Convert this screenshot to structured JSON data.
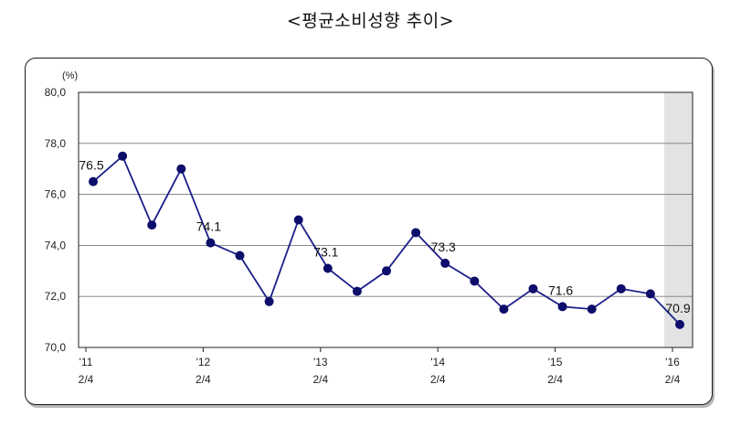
{
  "title": "<평균소비성향 추이>",
  "chart_data": {
    "type": "line",
    "title": "<평균소비성향 추이>",
    "unit_label": "(%)",
    "ylim": [
      70.0,
      80.0
    ],
    "y_ticks": [
      "70,0",
      "72,0",
      "74,0",
      "76,0",
      "78,0",
      "80,0"
    ],
    "grid": true,
    "x_tick_labels": [
      {
        "year": "'11",
        "quarter": "2/4",
        "index": 0
      },
      {
        "year": "'12",
        "quarter": "2/4",
        "index": 4
      },
      {
        "year": "'13",
        "quarter": "2/4",
        "index": 8
      },
      {
        "year": "'14",
        "quarter": "2/4",
        "index": 12
      },
      {
        "year": "'15",
        "quarter": "2/4",
        "index": 16
      },
      {
        "year": "'16",
        "quarter": "2/4",
        "index": 20
      }
    ],
    "values": [
      76.5,
      77.5,
      74.8,
      77.0,
      74.1,
      73.6,
      71.8,
      75.0,
      73.1,
      72.2,
      73.0,
      74.5,
      73.3,
      72.6,
      71.5,
      72.3,
      71.6,
      71.5,
      72.3,
      72.1,
      70.9
    ],
    "data_labels": [
      {
        "index": 0,
        "text": "76.5"
      },
      {
        "index": 4,
        "text": "74.1"
      },
      {
        "index": 8,
        "text": "73.1"
      },
      {
        "index": 12,
        "text": "73.3"
      },
      {
        "index": 16,
        "text": "71.6"
      },
      {
        "index": 20,
        "text": "70.9"
      }
    ],
    "highlight_index": 20,
    "line_color": "#1b1f8a",
    "marker_color": "#0d0d6b",
    "highlight_color": "#e3e3e3"
  }
}
